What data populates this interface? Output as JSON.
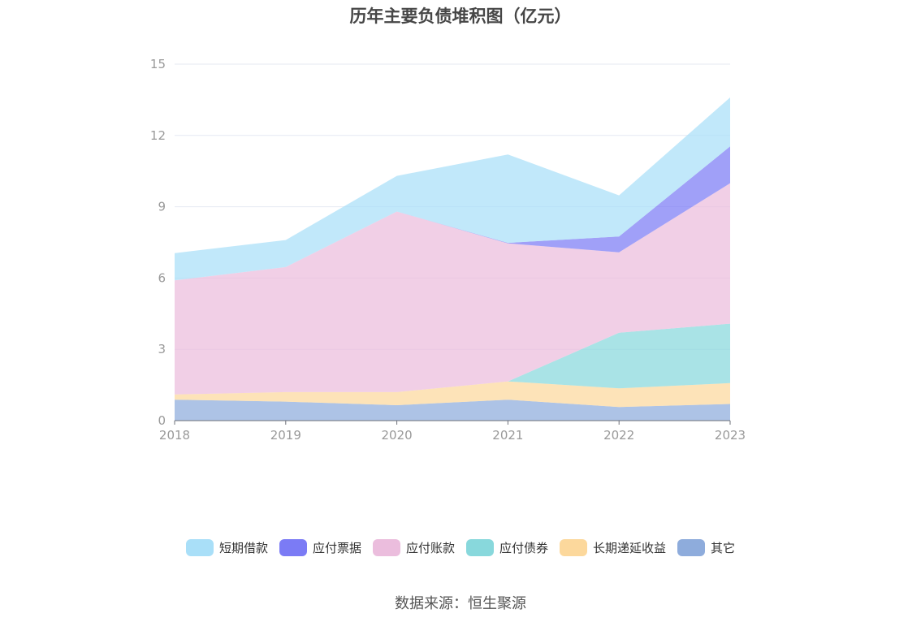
{
  "chart_data": {
    "type": "area",
    "stacked": true,
    "title": "历年主要负债堆积图（亿元）",
    "categories": [
      "2018",
      "2019",
      "2020",
      "2021",
      "2022",
      "2023"
    ],
    "ylim": [
      0,
      15
    ],
    "yticks": [
      "0",
      "3",
      "6",
      "9",
      "12",
      "15"
    ],
    "grid": true,
    "legend_position": "bottom",
    "series": [
      {
        "name": "其它",
        "color": "#8eacdc",
        "values": [
          0.88,
          0.8,
          0.65,
          0.88,
          0.57,
          0.7
        ]
      },
      {
        "name": "长期递延收益",
        "color": "#fcd89c",
        "values": [
          0.22,
          0.4,
          0.55,
          0.77,
          0.79,
          0.88
        ]
      },
      {
        "name": "应付债券",
        "color": "#88d8dc",
        "values": [
          0,
          0,
          0,
          0,
          2.34,
          2.5
        ]
      },
      {
        "name": "应付账款",
        "color": "#ebbddd",
        "values": [
          4.8,
          5.26,
          7.6,
          5.81,
          3.38,
          5.91
        ]
      },
      {
        "name": "应付票据",
        "color": "#7b7bf5",
        "values": [
          0,
          0,
          0,
          0.02,
          0.67,
          1.55
        ]
      },
      {
        "name": "短期借款",
        "color": "#a9dff8",
        "values": [
          1.15,
          1.14,
          1.5,
          3.72,
          1.73,
          2.06
        ]
      }
    ]
  },
  "legend_order": [
    "短期借款",
    "应付票据",
    "应付账款",
    "应付债券",
    "长期递延收益",
    "其它"
  ],
  "source": "数据来源：恒生聚源"
}
